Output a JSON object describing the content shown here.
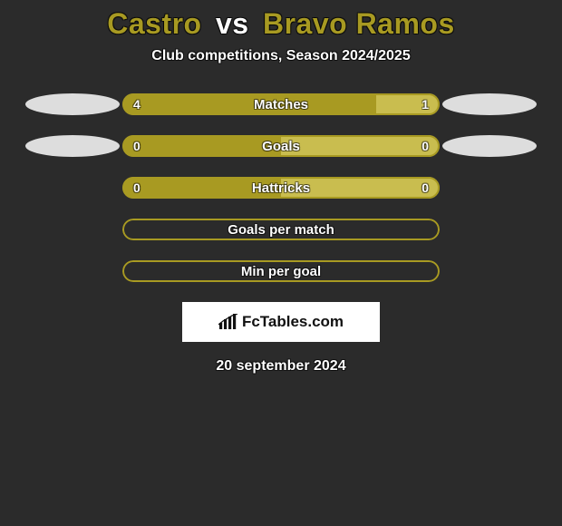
{
  "colors": {
    "background": "#2b2b2b",
    "accent": "#a89a22",
    "title_p1": "#a89a22",
    "title_vs": "#ffffff",
    "title_p2": "#a89a22",
    "bar_right_tint": "#c9bd4f",
    "badge_fill": "#dddddd",
    "border": "#a89a22"
  },
  "title": {
    "player1": "Castro",
    "vs": "vs",
    "player2": "Bravo Ramos"
  },
  "subtitle": "Club competitions, Season 2024/2025",
  "rows": [
    {
      "label": "Matches",
      "left": "4",
      "right": "1",
      "left_pct": 80,
      "right_pct": 20,
      "show_values": true,
      "show_left_badge": true,
      "show_right_badge": true,
      "fill": true,
      "outline_only": false
    },
    {
      "label": "Goals",
      "left": "0",
      "right": "0",
      "left_pct": 50,
      "right_pct": 50,
      "show_values": true,
      "show_left_badge": true,
      "show_right_badge": true,
      "fill": true,
      "outline_only": false
    },
    {
      "label": "Hattricks",
      "left": "0",
      "right": "0",
      "left_pct": 50,
      "right_pct": 50,
      "show_values": true,
      "show_left_badge": false,
      "show_right_badge": false,
      "fill": true,
      "outline_only": false
    },
    {
      "label": "Goals per match",
      "left": "",
      "right": "",
      "left_pct": 0,
      "right_pct": 0,
      "show_values": false,
      "show_left_badge": false,
      "show_right_badge": false,
      "fill": false,
      "outline_only": true
    },
    {
      "label": "Min per goal",
      "left": "",
      "right": "",
      "left_pct": 0,
      "right_pct": 0,
      "show_values": false,
      "show_left_badge": false,
      "show_right_badge": false,
      "fill": false,
      "outline_only": true
    }
  ],
  "logo": {
    "text": "FcTables.com"
  },
  "date": "20 september 2024"
}
